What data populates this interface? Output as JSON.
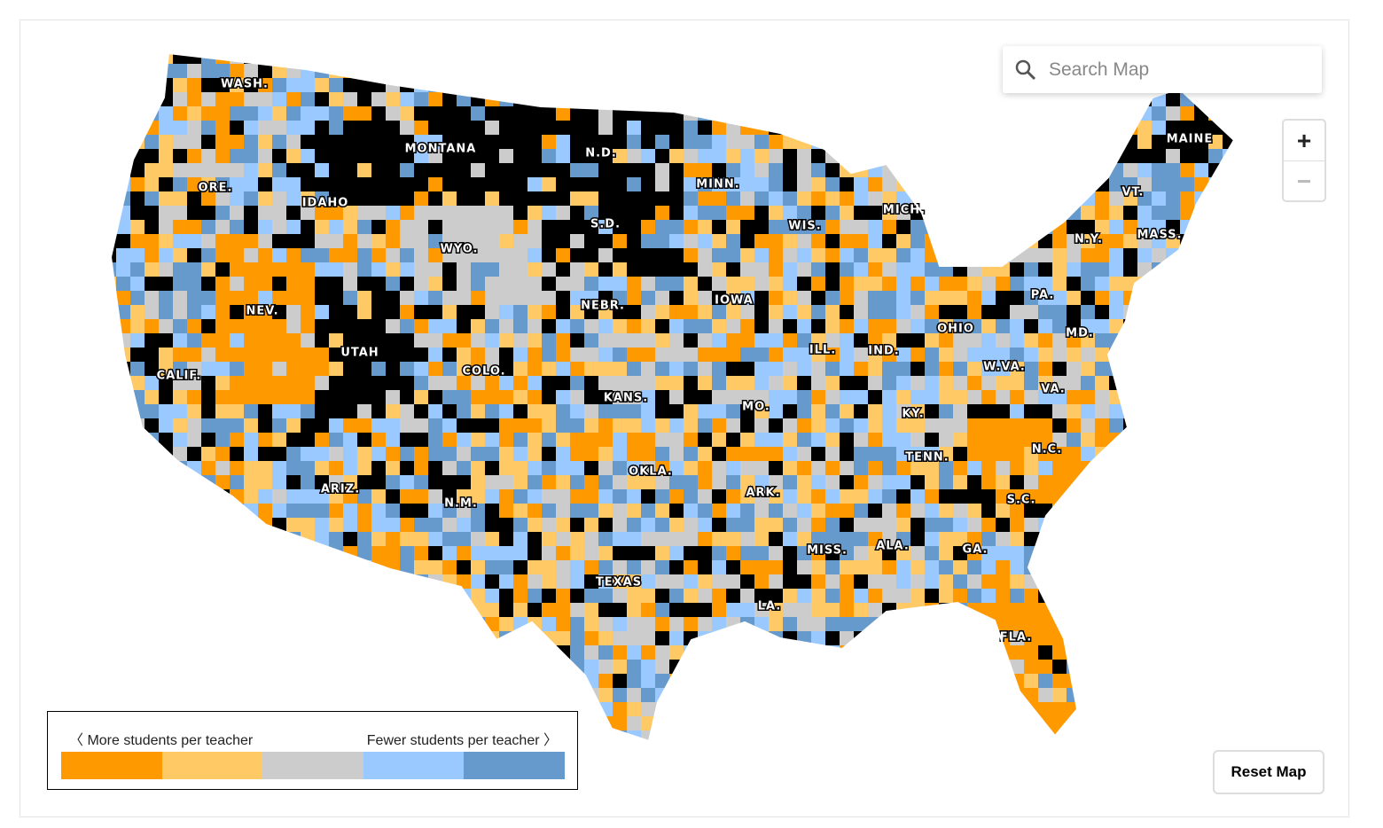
{
  "search": {
    "placeholder": "Search Map"
  },
  "zoom": {
    "in": "+",
    "out": "−"
  },
  "reset": "Reset Map",
  "legend": {
    "left_label": "〈 More students per teacher",
    "right_label": "Fewer students per teacher 〉",
    "colors": [
      "#ff9900",
      "#ffc966",
      "#cccccc",
      "#99c9ff",
      "#6699cc"
    ]
  },
  "no_data_color": "#000000",
  "states": [
    "WASH.",
    "ORE.",
    "CALIF.",
    "IDAHO",
    "NEV.",
    "MONTANA",
    "WYO.",
    "UTAH",
    "ARIZ.",
    "COLO.",
    "N.M.",
    "N.D.",
    "S.D.",
    "NEBR.",
    "KANS.",
    "OKLA.",
    "TEXAS",
    "MINN.",
    "IOWA",
    "MO.",
    "ARK.",
    "LA.",
    "WIS.",
    "ILL.",
    "MICH.",
    "IND.",
    "OHIO",
    "KY.",
    "TENN.",
    "MISS.",
    "ALA.",
    "GA.",
    "FLA.",
    "S.C.",
    "N.C.",
    "VA.",
    "W.VA.",
    "MD.",
    "PA.",
    "N.Y.",
    "VT.",
    "MASS.",
    "MAINE"
  ]
}
